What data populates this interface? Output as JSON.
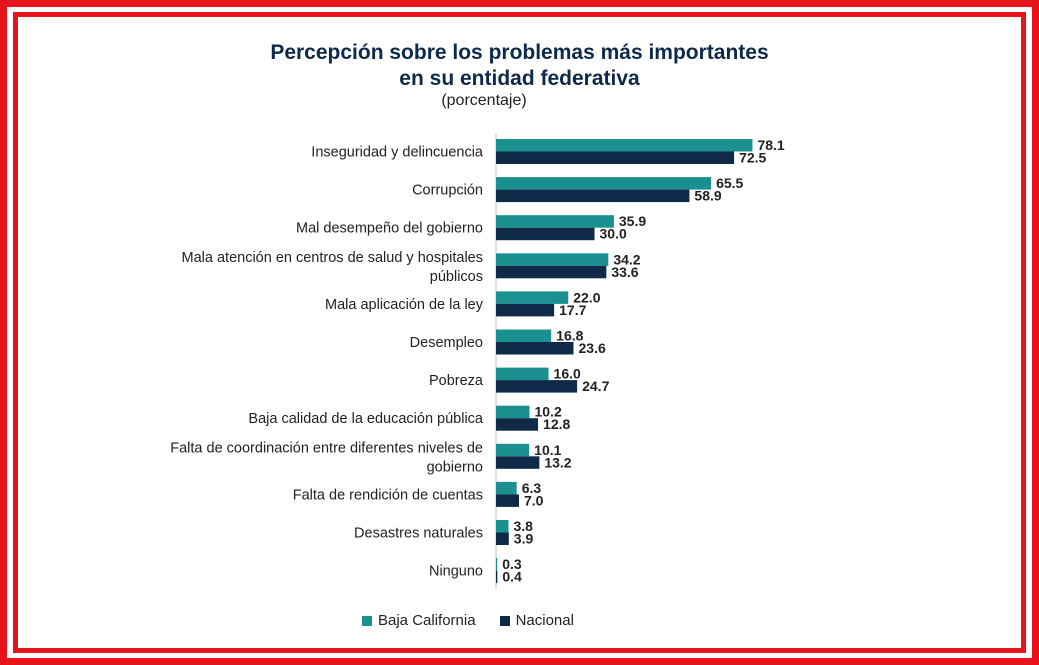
{
  "chart_data": {
    "type": "bar",
    "orientation": "horizontal",
    "title_line1": "Percepción sobre los problemas más importantes",
    "title_line2": "en su entidad federativa",
    "subtitle": "(porcentaje)",
    "categories": [
      [
        "Inseguridad y delincuencia"
      ],
      [
        "Corrupción"
      ],
      [
        "Mal desempeño del gobierno"
      ],
      [
        "Mala atención en centros de salud y hospitales",
        "públicos"
      ],
      [
        "Mala aplicación de la ley"
      ],
      [
        "Desempleo"
      ],
      [
        "Pobreza"
      ],
      [
        "Baja calidad de la educación pública"
      ],
      [
        "Falta de coordinación entre diferentes niveles de",
        "gobierno"
      ],
      [
        "Falta de rendición de cuentas"
      ],
      [
        "Desastres naturales"
      ],
      [
        "Ninguno"
      ]
    ],
    "series": [
      {
        "name": "Baja California",
        "color": "#1a9190",
        "values": [
          78.1,
          65.5,
          35.9,
          34.2,
          22.0,
          16.8,
          16.0,
          10.2,
          10.1,
          6.3,
          3.8,
          0.3
        ]
      },
      {
        "name": "Nacional",
        "color": "#0f2a49",
        "values": [
          72.5,
          58.9,
          30.0,
          33.6,
          17.7,
          23.6,
          24.7,
          12.8,
          13.2,
          7.0,
          3.9,
          0.4
        ]
      }
    ],
    "legend_position": "bottom",
    "grid": false
  }
}
